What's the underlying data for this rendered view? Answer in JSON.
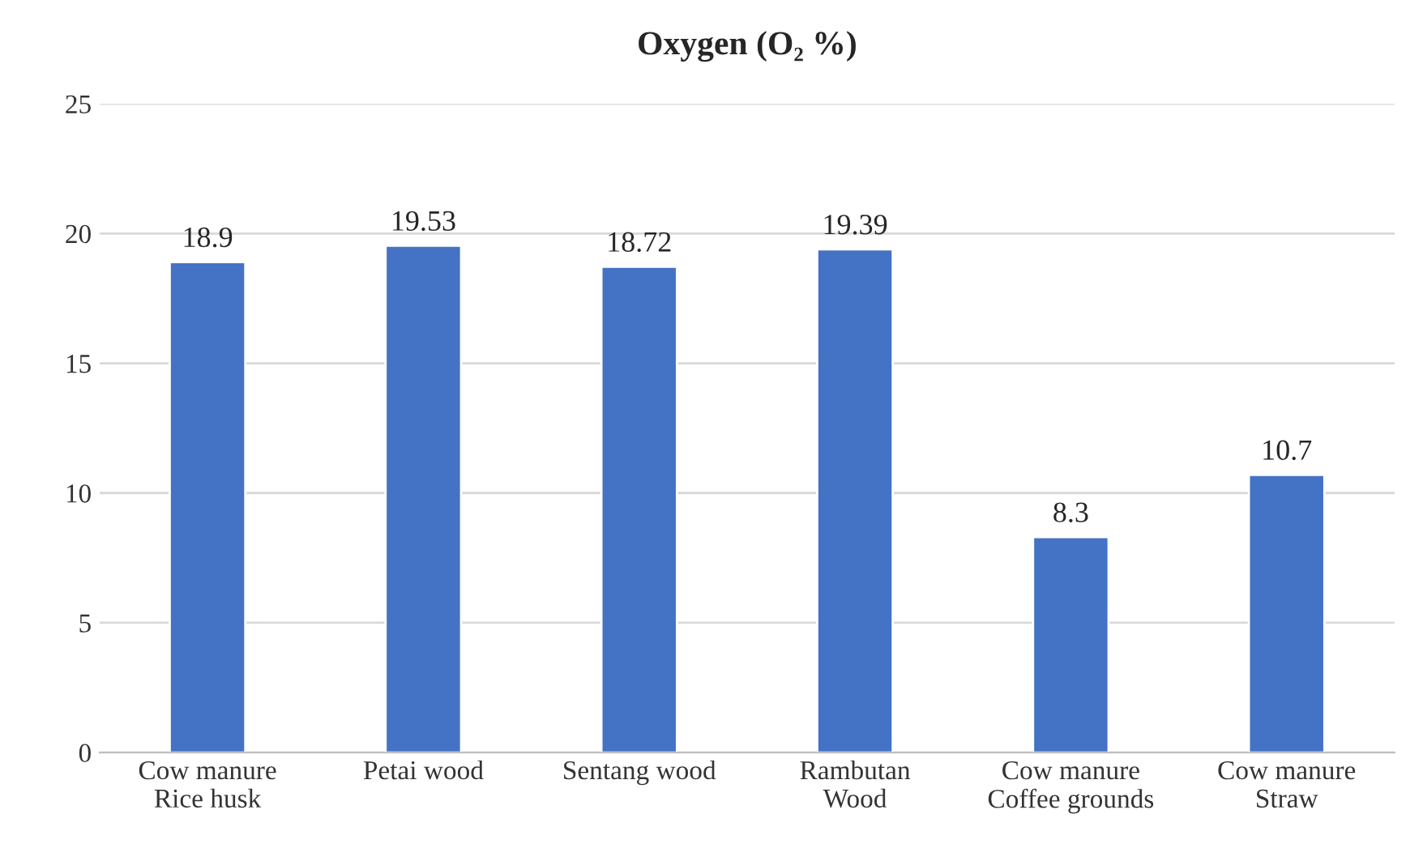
{
  "chart_data": {
    "type": "bar",
    "title": "Oxygen (O₂ %)",
    "categories": [
      "Cow manure\nRice husk",
      "Petai wood",
      "Sentang wood",
      "Rambutan\nWood",
      "Cow manure\nCoffee grounds",
      "Cow manure\nStraw"
    ],
    "values": [
      18.9,
      19.53,
      18.72,
      19.39,
      8.3,
      10.7
    ],
    "color": "#4472c4",
    "ylim": [
      0,
      25
    ],
    "yticks": [
      0,
      5,
      10,
      15,
      20,
      25
    ],
    "grid": "y",
    "data_labels": true
  }
}
